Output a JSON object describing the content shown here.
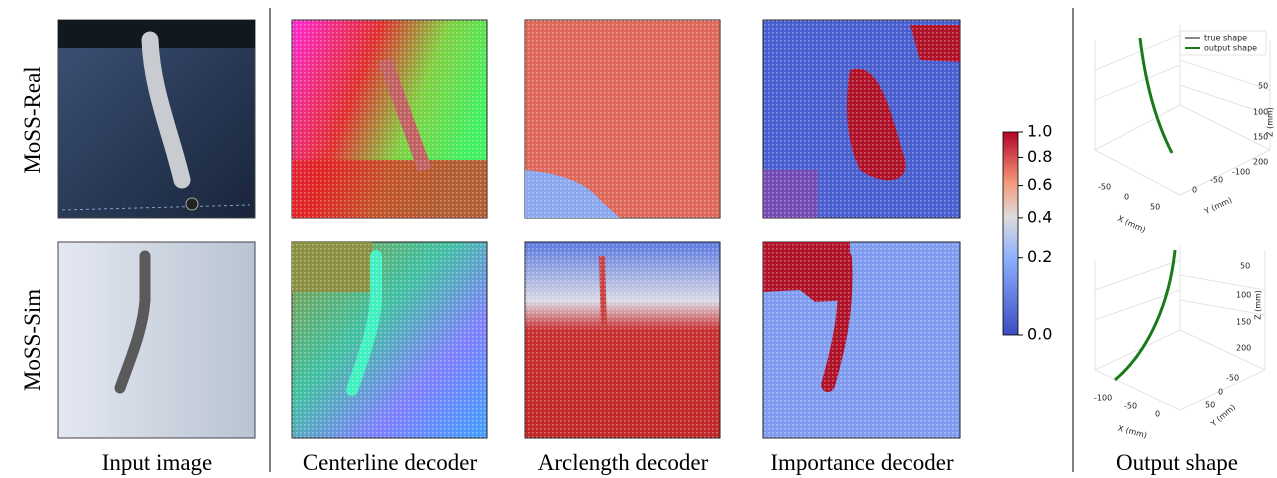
{
  "row_labels": [
    "MoSS-Real",
    "MoSS-Sim"
  ],
  "column_labels": [
    "Input image",
    "Centerline decoder",
    "Arclength decoder",
    "Importance decoder",
    "Output shape"
  ],
  "colorbar": {
    "ticks": [
      {
        "value": 0,
        "label": "0.0"
      },
      {
        "value": 0.2,
        "label": "0.2"
      },
      {
        "value": 0.4,
        "label": "0.4"
      },
      {
        "value": 0.6,
        "label": "0.6"
      },
      {
        "value": 0.8,
        "label": "0.8"
      },
      {
        "value": 1,
        "label": "1.0"
      }
    ]
  },
  "output_plots": [
    {
      "legend": [
        "true shape",
        "output shape"
      ],
      "x_label": "X (mm)",
      "y_label": "Y (mm)",
      "z_label": "Z (mm)",
      "x_ticks": [
        "-50",
        "0",
        "50"
      ],
      "y_ticks": [
        "-100",
        "-50",
        "0"
      ],
      "z_ticks": [
        "50",
        "100",
        "150",
        "200"
      ]
    },
    {
      "x_label": "X (mm)",
      "y_label": "Y (mm)",
      "z_label": "Z (mm)",
      "x_ticks": [
        "-100",
        "-50",
        "0"
      ],
      "y_ticks": [
        "-50",
        "0",
        "50"
      ],
      "z_ticks": [
        "50",
        "100",
        "150",
        "200"
      ]
    }
  ]
}
